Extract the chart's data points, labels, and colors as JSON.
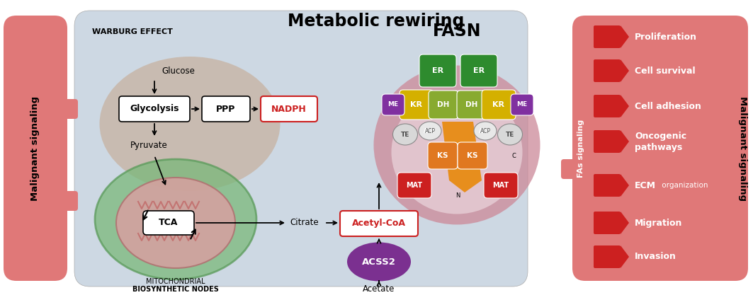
{
  "title": "Metabolic rewiring",
  "title_fontsize": 17,
  "bg_color": "#ffffff",
  "main_box_color": "#cdd8e3",
  "left_panel_color": "#e07878",
  "right_panel_color": "#e07878",
  "left_label": "Malignant signaling",
  "right_label": "Malignant signaling",
  "fas_label": "FAs signaling",
  "warburg_label": "WARBURG EFFECT",
  "fasn_label": "FASN",
  "mitochondrial_label1": "MITOCHONDRIAL",
  "mitochondrial_label2": "BIOSYNTHETIC NODES",
  "glucose_label": "Glucose",
  "pyruvate_label": "Pyruvate",
  "citrate_label": "Citrate",
  "acetate_label": "Acetate",
  "right_items": [
    "Proliferation",
    "Cell survival",
    "Cell adhesion",
    "Oncogenic\npathways",
    "ECM",
    "Migration",
    "Invasion"
  ],
  "ecm_suffix": " organization",
  "red_arrow_color": "#cc2020",
  "acss2_circle_color": "#7B3090",
  "warburg_ellipse_color": "#c4a080",
  "mito_outer_color": "#7ab87a",
  "mito_inner_color": "#d08888",
  "fasn_ellipse_color": "#cc8898",
  "fasn_bg_color": "#e8d0d8",
  "domain_colors": {
    "ER": "#2e8b2e",
    "KR": "#d4b000",
    "DH": "#88aa30",
    "ME": "#8030a0",
    "TE": "#d8d8d8",
    "ACP": "#e0e0e0",
    "KS": "#e07820",
    "MAT": "#cc2020",
    "N": "#c0c0c0",
    "C": "#c0c0c0"
  },
  "orange_kite_color": "#e8880a"
}
